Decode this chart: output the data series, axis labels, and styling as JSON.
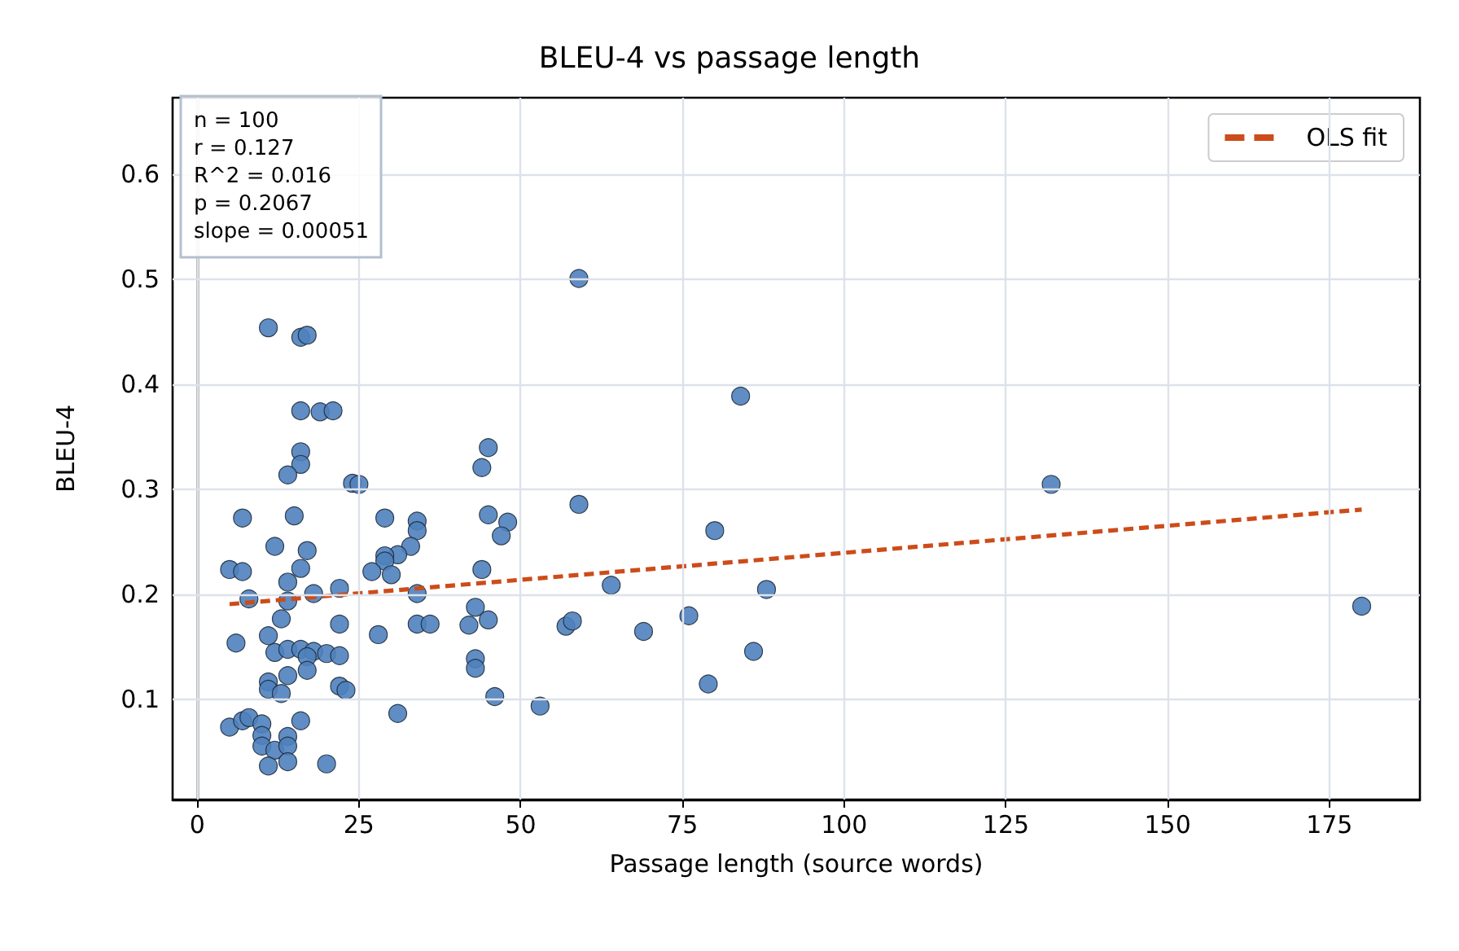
{
  "chart_data": {
    "type": "scatter",
    "title": "BLEU-4 vs passage length",
    "xlabel": "Passage length (source words)",
    "ylabel": "BLEU-4",
    "annotations": [
      "n = 100",
      "r = 0.127",
      "R^2 = 0.016",
      "p = 0.2067",
      "slope = 0.00051"
    ],
    "xlim": [
      -3.8,
      189
    ],
    "ylim": [
      0.005,
      0.673
    ],
    "xticks": [
      0,
      25,
      50,
      75,
      100,
      125,
      150,
      175
    ],
    "yticks": [
      0.1,
      0.2,
      0.3,
      0.4,
      0.5,
      0.6
    ],
    "grid": true,
    "legend": "top right",
    "series": [
      {
        "color": "#4f81bd",
        "marker": "circle",
        "x": [
          16,
          16,
          14,
          24,
          25,
          7,
          15,
          29,
          34,
          34,
          12,
          17,
          33,
          31,
          29,
          29,
          27,
          30,
          16,
          5,
          7,
          14,
          8,
          14,
          18,
          22,
          34,
          44,
          45,
          48,
          47,
          44,
          45,
          59,
          64,
          13,
          22,
          34,
          36,
          6,
          11,
          12,
          14,
          16,
          18,
          17,
          20,
          22,
          17,
          14,
          11,
          11,
          13,
          22,
          23,
          28,
          42,
          43,
          45,
          43,
          43,
          46,
          31,
          53,
          57,
          58,
          69,
          5,
          7,
          8,
          10,
          10,
          10,
          12,
          14,
          14,
          16,
          11,
          14,
          20,
          11,
          16,
          17,
          16,
          19,
          21,
          59,
          84,
          80,
          88,
          76,
          86,
          79,
          132,
          180
        ],
        "values": [
          0.336,
          0.324,
          0.314,
          0.306,
          0.305,
          0.273,
          0.275,
          0.273,
          0.27,
          0.261,
          0.246,
          0.242,
          0.246,
          0.238,
          0.237,
          0.232,
          0.222,
          0.219,
          0.225,
          0.224,
          0.222,
          0.212,
          0.196,
          0.194,
          0.201,
          0.206,
          0.201,
          0.224,
          0.276,
          0.269,
          0.256,
          0.321,
          0.34,
          0.286,
          0.209,
          0.177,
          0.172,
          0.172,
          0.172,
          0.154,
          0.161,
          0.145,
          0.148,
          0.148,
          0.146,
          0.141,
          0.144,
          0.142,
          0.128,
          0.123,
          0.117,
          0.11,
          0.106,
          0.113,
          0.109,
          0.162,
          0.171,
          0.188,
          0.176,
          0.139,
          0.13,
          0.103,
          0.087,
          0.094,
          0.17,
          0.175,
          0.165,
          0.074,
          0.08,
          0.083,
          0.077,
          0.066,
          0.056,
          0.052,
          0.065,
          0.056,
          0.08,
          0.037,
          0.041,
          0.039,
          0.454,
          0.445,
          0.447,
          0.375,
          0.374,
          0.375,
          0.501,
          0.389,
          0.261,
          0.205,
          0.18,
          0.146,
          0.115,
          0.305,
          0.189
        ]
      },
      {
        "type": "line",
        "name": "OLS fit",
        "color": "#cc4c1a",
        "line_style": "dashed",
        "marker": "none",
        "x": [
          5,
          180
        ],
        "values": [
          0.191,
          0.281
        ]
      }
    ]
  }
}
